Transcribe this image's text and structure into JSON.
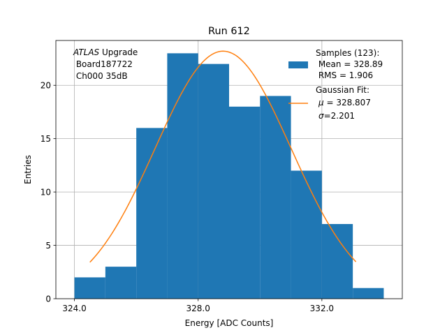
{
  "chart_data": {
    "type": "bar",
    "title": "Run 612",
    "xlabel": "Energy [ADC Counts]",
    "ylabel": "Entries",
    "xlim": [
      323.4,
      334.6
    ],
    "ylim": [
      0,
      24.2
    ],
    "x_ticks": [
      324.0,
      328.0,
      332.0
    ],
    "x_tick_labels": [
      "324.0",
      "328.0",
      "332.0"
    ],
    "y_ticks": [
      0,
      5,
      10,
      15,
      20
    ],
    "y_tick_labels": [
      "0",
      "5",
      "10",
      "15",
      "20"
    ],
    "grid": true,
    "bar_color": "#1f77b4",
    "fit_color": "#ff7f0e",
    "histogram": {
      "bin_edges": [
        324.0,
        325.0,
        326.0,
        327.0,
        328.0,
        329.0,
        330.0,
        331.0,
        332.0,
        333.0,
        334.0
      ],
      "counts": [
        2,
        3,
        16,
        23,
        22,
        18,
        19,
        12,
        7,
        1
      ]
    },
    "fit": {
      "mu": 328.807,
      "sigma": 2.201,
      "x_min": 324.5,
      "x_max": 333.1,
      "peak": 23.2
    },
    "annotation": {
      "line1_italic": "ATLAS",
      "line1_rest": " Upgrade",
      "line2": " Board187722",
      "line3": " Ch000 35dB"
    },
    "legend": {
      "position": "top-right",
      "samples_title": "Samples (123):",
      "samples_mean": " Mean = 328.89",
      "samples_rms": " RMS = 1.906",
      "fit_title": "Gaussian Fit:",
      "fit_mu_symbol": "μ",
      "fit_mu_value": " = 328.807",
      "fit_sigma_symbol": "σ",
      "fit_sigma_value": "=2.201"
    }
  }
}
